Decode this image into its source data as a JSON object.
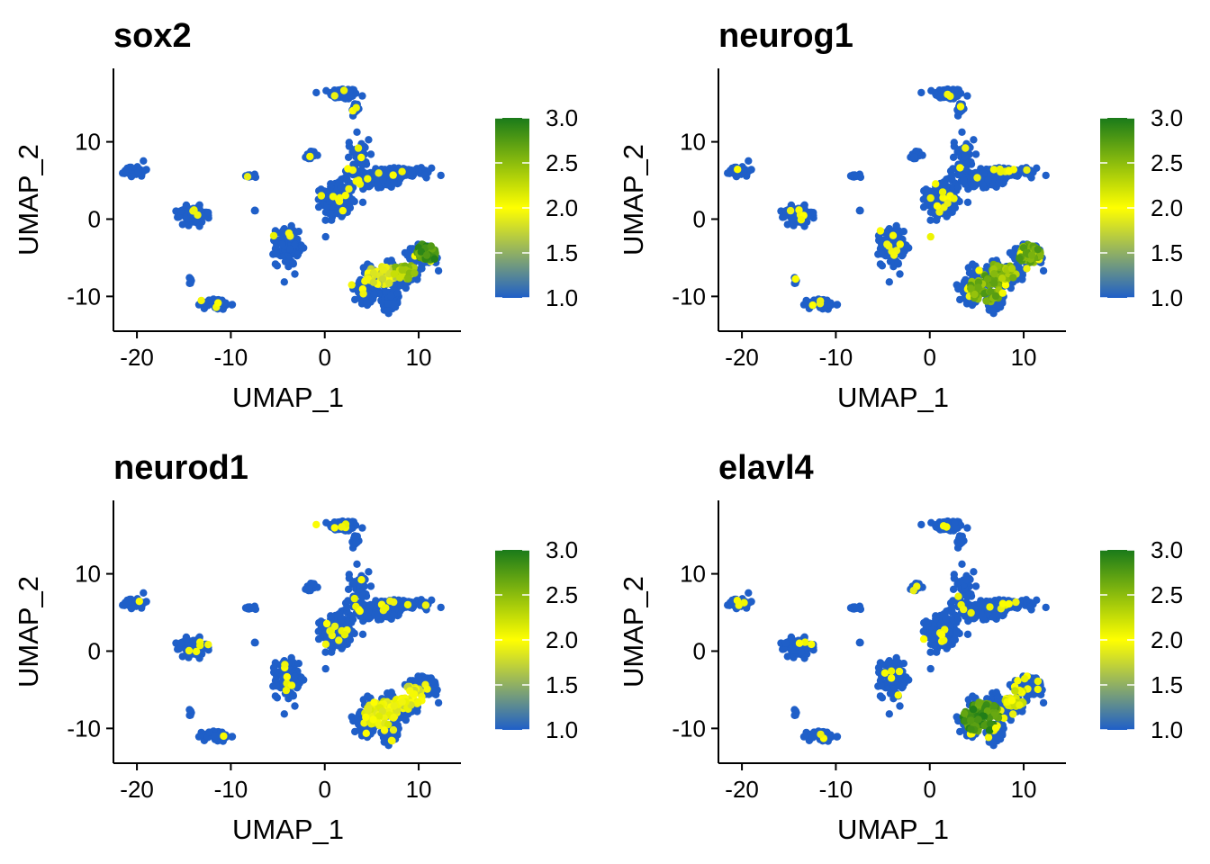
{
  "colors": {
    "low": "#1f5fc8",
    "mid": "#ffff00",
    "high": "#1a7a1a",
    "axis": "#000000",
    "background": "#ffffff"
  },
  "chart_data": [
    {
      "type": "scatter",
      "title": "sox2",
      "xlabel": "UMAP_1",
      "ylabel": "UMAP_2",
      "xlim": [
        -22.5,
        14.5
      ],
      "ylim": [
        -14.5,
        19.5
      ],
      "xticks": [
        "-20",
        "-10",
        "0",
        "10"
      ],
      "yticks": [
        "-10",
        "0",
        "10"
      ],
      "legend": {
        "position": "right",
        "ticks": [
          "1.0",
          "1.5",
          "2.0",
          "2.5",
          "3.0"
        ],
        "range": [
          1.0,
          3.0
        ]
      },
      "grid": false,
      "high_regions": [
        {
          "x": 11,
          "y": -4.2,
          "value": 3.0,
          "spread": 1.2
        },
        {
          "x": 8.5,
          "y": -6.5,
          "value": 2.6,
          "spread": 1.3
        },
        {
          "x": 6,
          "y": -7.2,
          "value": 2.0,
          "spread": 1.5
        }
      ]
    },
    {
      "type": "scatter",
      "title": "neurog1",
      "xlabel": "UMAP_1",
      "ylabel": "UMAP_2",
      "xlim": [
        -22.5,
        14.5
      ],
      "ylim": [
        -14.5,
        19.5
      ],
      "xticks": [
        "-20",
        "-10",
        "0",
        "10"
      ],
      "yticks": [
        "-10",
        "0",
        "10"
      ],
      "legend": {
        "position": "right",
        "ticks": [
          "1.0",
          "1.5",
          "2.0",
          "2.5",
          "3.0"
        ],
        "range": [
          1.0,
          3.0
        ]
      },
      "grid": false,
      "high_regions": [
        {
          "x": 10.5,
          "y": -4.5,
          "value": 2.8,
          "spread": 1.3
        },
        {
          "x": 8,
          "y": -6.5,
          "value": 2.7,
          "spread": 1.4
        },
        {
          "x": 6,
          "y": -9,
          "value": 2.8,
          "spread": 1.8
        }
      ]
    },
    {
      "type": "scatter",
      "title": "neurod1",
      "xlabel": "UMAP_1",
      "ylabel": "UMAP_2",
      "xlim": [
        -22.5,
        14.5
      ],
      "ylim": [
        -14.5,
        19.5
      ],
      "xticks": [
        "-20",
        "-10",
        "0",
        "10"
      ],
      "yticks": [
        "-10",
        "0",
        "10"
      ],
      "legend": {
        "position": "right",
        "ticks": [
          "1.0",
          "1.5",
          "2.0",
          "2.5",
          "3.0"
        ],
        "range": [
          1.0,
          3.0
        ]
      },
      "grid": false,
      "high_regions": [
        {
          "x": 6,
          "y": -8,
          "value": 2.2,
          "spread": 1.8
        },
        {
          "x": 9,
          "y": -6,
          "value": 2.1,
          "spread": 1.5
        }
      ]
    },
    {
      "type": "scatter",
      "title": "elavl4",
      "xlabel": "UMAP_1",
      "ylabel": "UMAP_2",
      "xlim": [
        -22.5,
        14.5
      ],
      "ylim": [
        -14.5,
        19.5
      ],
      "xticks": [
        "-20",
        "-10",
        "0",
        "10"
      ],
      "yticks": [
        "-10",
        "0",
        "10"
      ],
      "legend": {
        "position": "right",
        "ticks": [
          "1.0",
          "1.5",
          "2.0",
          "2.5",
          "3.0"
        ],
        "range": [
          1.0,
          3.0
        ]
      },
      "grid": false,
      "high_regions": [
        {
          "x": 5.5,
          "y": -8.5,
          "value": 3.0,
          "spread": 2.0
        },
        {
          "x": 9,
          "y": -6,
          "value": 2.3,
          "spread": 1.2
        }
      ]
    }
  ]
}
